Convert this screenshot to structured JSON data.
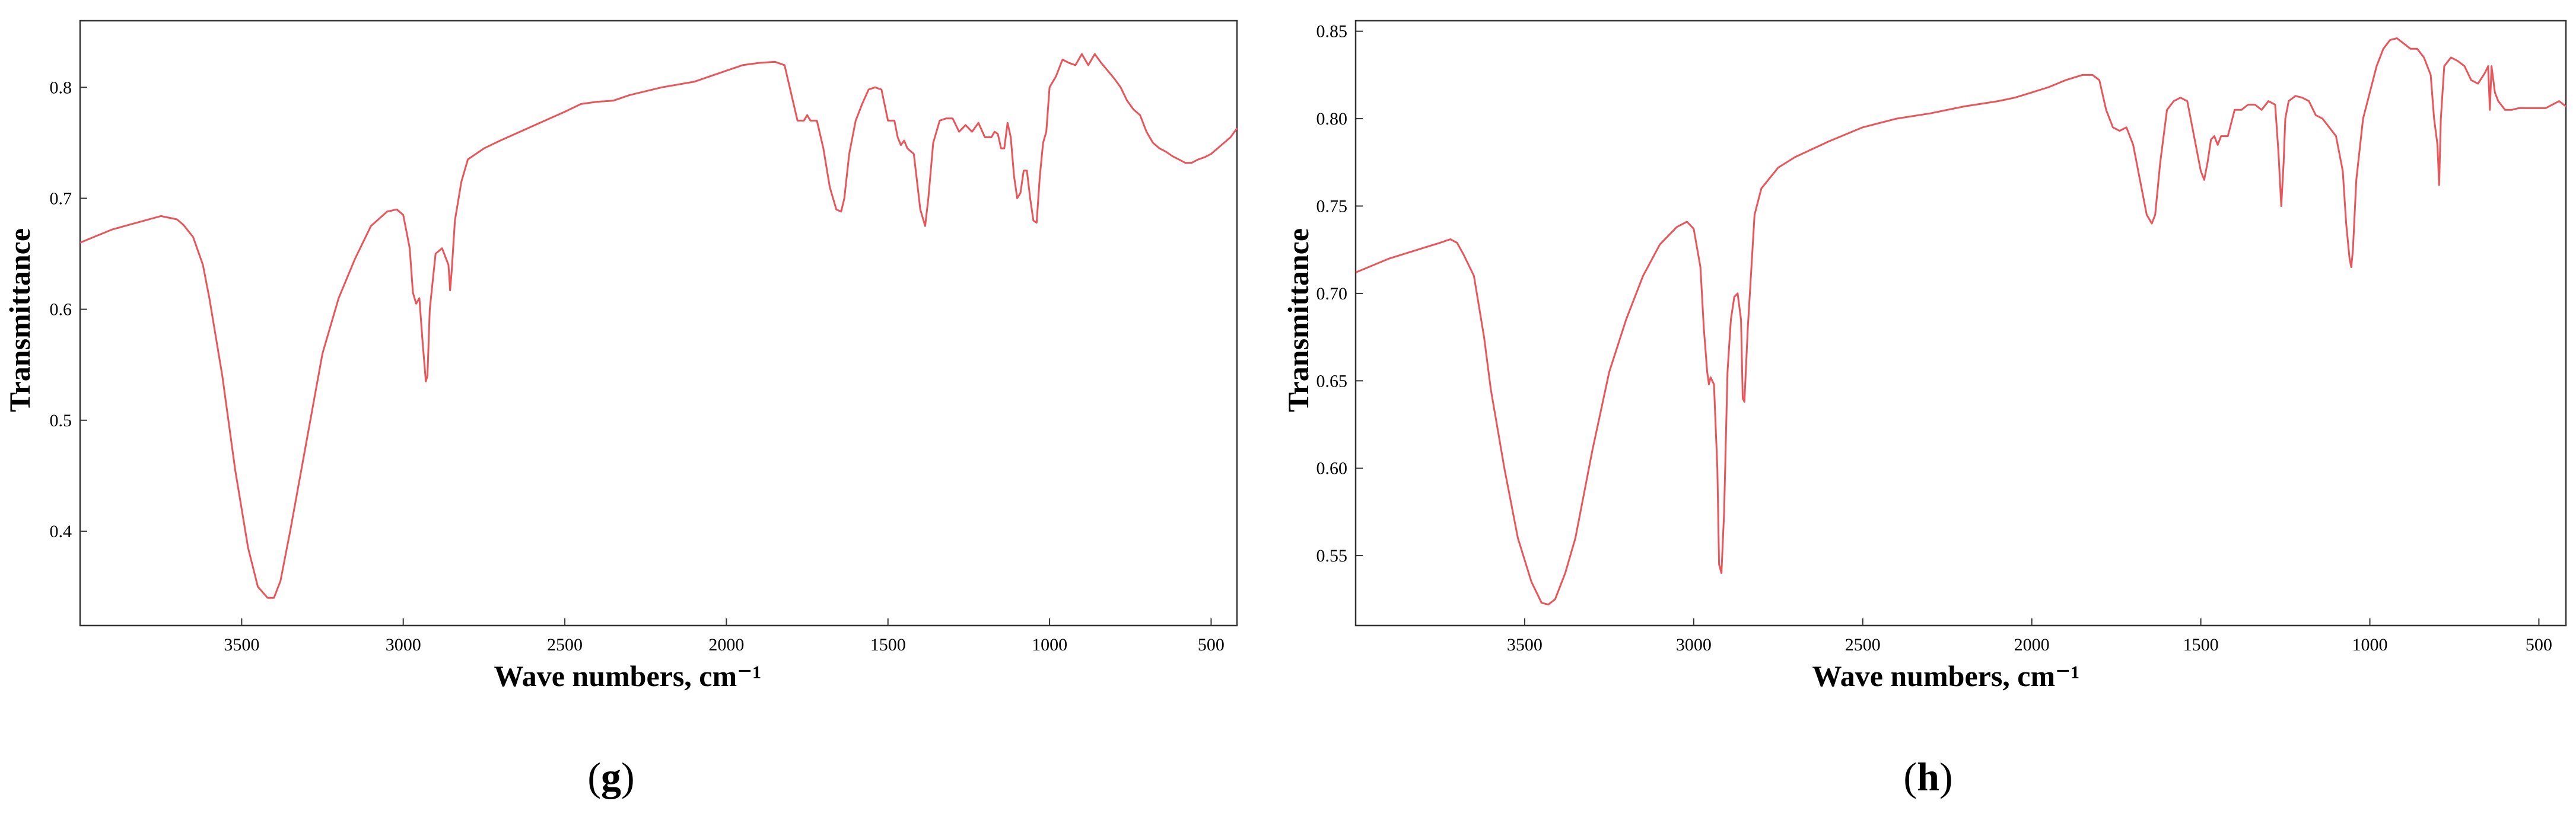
{
  "chart_data": [
    {
      "type": "line",
      "panel_label": "g",
      "xlabel": "Wave numbers, cm⁻¹",
      "ylabel": "Transmittance",
      "xlim": [
        4000,
        420
      ],
      "ylim": [
        0.315,
        0.86
      ],
      "x_reversed": true,
      "grid": false,
      "color": "#e8555a",
      "xticks": [
        3500,
        3000,
        2500,
        2000,
        1500,
        1000,
        500
      ],
      "yticks": [
        0.4,
        0.5,
        0.6,
        0.7,
        0.8
      ],
      "ytick_labels": [
        "0.4",
        "0.5",
        "0.6",
        "0.7",
        "0.8"
      ],
      "series": [
        {
          "x": [
            4000,
            3900,
            3800,
            3750,
            3700,
            3680,
            3650,
            3620,
            3600,
            3560,
            3520,
            3480,
            3450,
            3420,
            3400,
            3380,
            3350,
            3300,
            3250,
            3200,
            3150,
            3100,
            3050,
            3020,
            3000,
            2980,
            2970,
            2960,
            2950,
            2940,
            2930,
            2925,
            2918,
            2900,
            2880,
            2860,
            2855,
            2850,
            2840,
            2820,
            2800,
            2750,
            2700,
            2600,
            2500,
            2450,
            2400,
            2350,
            2300,
            2200,
            2100,
            2050,
            2000,
            1950,
            1900,
            1850,
            1820,
            1780,
            1760,
            1750,
            1740,
            1720,
            1700,
            1680,
            1660,
            1645,
            1635,
            1620,
            1600,
            1580,
            1560,
            1540,
            1520,
            1500,
            1480,
            1470,
            1460,
            1450,
            1440,
            1420,
            1400,
            1385,
            1375,
            1360,
            1340,
            1320,
            1300,
            1280,
            1260,
            1240,
            1220,
            1200,
            1180,
            1170,
            1160,
            1150,
            1140,
            1130,
            1120,
            1110,
            1100,
            1090,
            1080,
            1070,
            1060,
            1050,
            1040,
            1030,
            1020,
            1010,
            1000,
            980,
            960,
            940,
            920,
            900,
            880,
            860,
            840,
            820,
            800,
            780,
            760,
            740,
            720,
            700,
            680,
            660,
            640,
            620,
            600,
            580,
            560,
            540,
            520,
            500,
            480,
            460,
            440,
            420
          ],
          "y": [
            0.66,
            0.672,
            0.68,
            0.684,
            0.681,
            0.676,
            0.665,
            0.64,
            0.61,
            0.54,
            0.455,
            0.385,
            0.35,
            0.34,
            0.34,
            0.355,
            0.4,
            0.48,
            0.56,
            0.61,
            0.645,
            0.675,
            0.688,
            0.69,
            0.685,
            0.655,
            0.615,
            0.605,
            0.61,
            0.57,
            0.535,
            0.54,
            0.6,
            0.65,
            0.655,
            0.64,
            0.617,
            0.635,
            0.68,
            0.715,
            0.735,
            0.745,
            0.752,
            0.765,
            0.778,
            0.785,
            0.787,
            0.788,
            0.793,
            0.8,
            0.805,
            0.81,
            0.815,
            0.82,
            0.822,
            0.823,
            0.82,
            0.77,
            0.77,
            0.775,
            0.77,
            0.77,
            0.745,
            0.71,
            0.69,
            0.688,
            0.7,
            0.74,
            0.77,
            0.785,
            0.798,
            0.8,
            0.798,
            0.77,
            0.77,
            0.755,
            0.748,
            0.752,
            0.745,
            0.74,
            0.69,
            0.675,
            0.7,
            0.75,
            0.77,
            0.772,
            0.772,
            0.76,
            0.766,
            0.76,
            0.768,
            0.755,
            0.755,
            0.76,
            0.758,
            0.745,
            0.745,
            0.768,
            0.755,
            0.72,
            0.7,
            0.705,
            0.725,
            0.725,
            0.7,
            0.68,
            0.678,
            0.72,
            0.75,
            0.76,
            0.8,
            0.81,
            0.825,
            0.822,
            0.82,
            0.83,
            0.82,
            0.83,
            0.822,
            0.815,
            0.808,
            0.8,
            0.788,
            0.78,
            0.775,
            0.76,
            0.75,
            0.745,
            0.742,
            0.738,
            0.735,
            0.732,
            0.732,
            0.735,
            0.737,
            0.74,
            0.745,
            0.75,
            0.755,
            0.763
          ]
        }
      ]
    },
    {
      "type": "line",
      "panel_label": "h",
      "xlabel": "Wave numbers, cm⁻¹",
      "ylabel": "Transmittance",
      "xlim": [
        4000,
        420
      ],
      "ylim": [
        0.51,
        0.856
      ],
      "x_reversed": true,
      "grid": false,
      "color": "#e8555a",
      "xticks": [
        3500,
        3000,
        2500,
        2000,
        1500,
        1000,
        500
      ],
      "yticks": [
        0.55,
        0.6,
        0.65,
        0.7,
        0.75,
        0.8,
        0.85
      ],
      "ytick_labels": [
        "0.55",
        "0.60",
        "0.65",
        "0.70",
        "0.75",
        "0.80",
        "0.85"
      ],
      "series": [
        {
          "x": [
            4000,
            3900,
            3800,
            3750,
            3720,
            3700,
            3680,
            3650,
            3620,
            3600,
            3560,
            3520,
            3480,
            3450,
            3430,
            3410,
            3380,
            3350,
            3300,
            3250,
            3200,
            3150,
            3100,
            3050,
            3020,
            3000,
            2980,
            2970,
            2960,
            2955,
            2950,
            2940,
            2930,
            2925,
            2918,
            2910,
            2900,
            2890,
            2880,
            2870,
            2860,
            2855,
            2850,
            2840,
            2820,
            2800,
            2750,
            2700,
            2600,
            2500,
            2400,
            2300,
            2200,
            2100,
            2050,
            2000,
            1950,
            1900,
            1850,
            1820,
            1800,
            1780,
            1760,
            1740,
            1720,
            1700,
            1680,
            1660,
            1645,
            1635,
            1620,
            1600,
            1580,
            1560,
            1540,
            1520,
            1500,
            1490,
            1480,
            1470,
            1460,
            1450,
            1440,
            1420,
            1400,
            1380,
            1360,
            1340,
            1320,
            1300,
            1280,
            1270,
            1262,
            1255,
            1250,
            1240,
            1220,
            1200,
            1180,
            1160,
            1140,
            1120,
            1100,
            1080,
            1070,
            1060,
            1055,
            1050,
            1040,
            1020,
            1000,
            980,
            960,
            940,
            920,
            900,
            880,
            860,
            840,
            820,
            810,
            800,
            795,
            790,
            780,
            760,
            740,
            720,
            700,
            680,
            660,
            650,
            645,
            640,
            630,
            620,
            600,
            580,
            560,
            540,
            520,
            500,
            480,
            460,
            440,
            420
          ],
          "y": [
            0.712,
            0.72,
            0.726,
            0.729,
            0.731,
            0.729,
            0.722,
            0.71,
            0.675,
            0.645,
            0.6,
            0.56,
            0.535,
            0.523,
            0.522,
            0.525,
            0.54,
            0.56,
            0.61,
            0.655,
            0.685,
            0.71,
            0.728,
            0.738,
            0.741,
            0.737,
            0.715,
            0.68,
            0.655,
            0.648,
            0.652,
            0.648,
            0.6,
            0.545,
            0.54,
            0.575,
            0.655,
            0.685,
            0.698,
            0.7,
            0.685,
            0.64,
            0.638,
            0.68,
            0.745,
            0.76,
            0.772,
            0.778,
            0.787,
            0.795,
            0.8,
            0.803,
            0.807,
            0.81,
            0.812,
            0.815,
            0.818,
            0.822,
            0.825,
            0.825,
            0.822,
            0.805,
            0.795,
            0.793,
            0.795,
            0.785,
            0.765,
            0.745,
            0.74,
            0.745,
            0.775,
            0.805,
            0.81,
            0.812,
            0.81,
            0.79,
            0.77,
            0.765,
            0.775,
            0.788,
            0.79,
            0.785,
            0.79,
            0.79,
            0.805,
            0.805,
            0.808,
            0.808,
            0.805,
            0.81,
            0.808,
            0.78,
            0.75,
            0.775,
            0.8,
            0.81,
            0.813,
            0.812,
            0.81,
            0.802,
            0.8,
            0.795,
            0.79,
            0.77,
            0.74,
            0.72,
            0.715,
            0.725,
            0.765,
            0.8,
            0.815,
            0.83,
            0.84,
            0.845,
            0.846,
            0.843,
            0.84,
            0.84,
            0.835,
            0.825,
            0.8,
            0.785,
            0.762,
            0.8,
            0.83,
            0.835,
            0.833,
            0.83,
            0.822,
            0.82,
            0.826,
            0.83,
            0.805,
            0.83,
            0.815,
            0.81,
            0.805,
            0.805,
            0.806,
            0.806,
            0.806,
            0.806,
            0.806,
            0.808,
            0.81,
            0.807
          ]
        }
      ]
    }
  ]
}
